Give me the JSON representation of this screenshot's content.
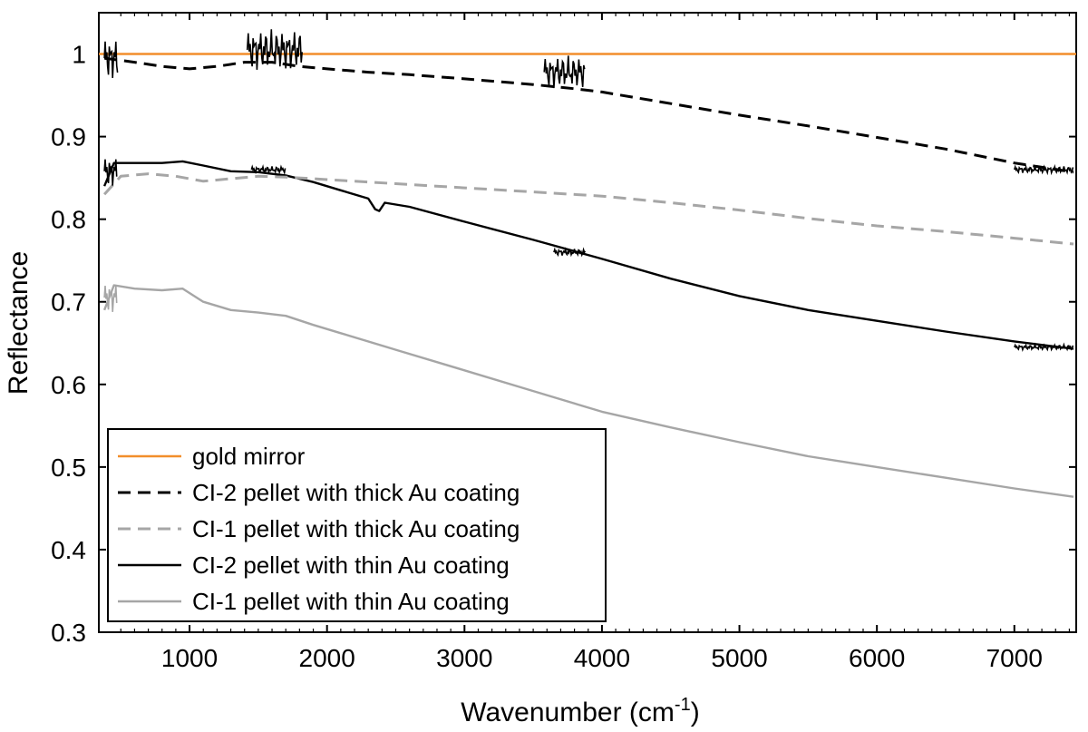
{
  "chart_data": {
    "type": "line",
    "title": "",
    "xlabel_main": "Wavenumber (cm",
    "xlabel_sup": "-1",
    "xlabel_close": ")",
    "ylabel": "Reflectance",
    "xlim": [
      340,
      7450
    ],
    "ylim": [
      0.3,
      1.05
    ],
    "xticks": [
      1000,
      2000,
      3000,
      4000,
      5000,
      6000,
      7000
    ],
    "xtick_labels": [
      "1000",
      "2000",
      "3000",
      "4000",
      "5000",
      "6000",
      "7000"
    ],
    "yticks": [
      0.3,
      0.4,
      0.5,
      0.6,
      0.7,
      0.8,
      0.9,
      1.0
    ],
    "ytick_labels": [
      "0.3",
      "0.4",
      "0.5",
      "0.6",
      "0.7",
      "0.8",
      "0.9",
      "1"
    ],
    "legend_position": "bottom-left",
    "series": [
      {
        "name": "gold mirror",
        "color": "#f28e2b",
        "style": "solid",
        "x": [
          340,
          7450
        ],
        "y": [
          1.0,
          1.0
        ]
      },
      {
        "name": "CI-2 pellet with thick Au coating",
        "color": "#000000",
        "style": "dashed",
        "x": [
          380,
          600,
          800,
          1000,
          1200,
          1400,
          1600,
          1800,
          2000,
          2300,
          2600,
          3000,
          3500,
          3800,
          4000,
          4500,
          5000,
          5500,
          6000,
          6500,
          7000,
          7430
        ],
        "y": [
          0.995,
          0.99,
          0.985,
          0.982,
          0.985,
          0.99,
          0.99,
          0.985,
          0.982,
          0.978,
          0.975,
          0.97,
          0.963,
          0.958,
          0.954,
          0.94,
          0.926,
          0.913,
          0.899,
          0.885,
          0.868,
          0.857
        ]
      },
      {
        "name": "CI-1 pellet with thick Au coating",
        "color": "#a6a6a6",
        "style": "dashed",
        "x": [
          380,
          500,
          700,
          900,
          1100,
          1300,
          1500,
          1700,
          2000,
          2500,
          3000,
          3500,
          4000,
          4500,
          5000,
          5500,
          6000,
          6500,
          7000,
          7430
        ],
        "y": [
          0.83,
          0.852,
          0.855,
          0.852,
          0.846,
          0.849,
          0.852,
          0.851,
          0.848,
          0.843,
          0.838,
          0.833,
          0.828,
          0.82,
          0.811,
          0.801,
          0.792,
          0.785,
          0.777,
          0.77
        ]
      },
      {
        "name": "CI-2 pellet with thin Au coating",
        "color": "#000000",
        "style": "solid",
        "x": [
          380,
          450,
          600,
          800,
          950,
          1100,
          1300,
          1500,
          1700,
          1900,
          2100,
          2300,
          2350,
          2380,
          2420,
          2600,
          3000,
          3500,
          4000,
          4500,
          5000,
          5500,
          6000,
          6500,
          7000,
          7430
        ],
        "y": [
          0.84,
          0.868,
          0.868,
          0.868,
          0.87,
          0.865,
          0.858,
          0.857,
          0.853,
          0.845,
          0.835,
          0.825,
          0.812,
          0.81,
          0.82,
          0.815,
          0.797,
          0.775,
          0.752,
          0.728,
          0.707,
          0.69,
          0.677,
          0.664,
          0.652,
          0.643
        ]
      },
      {
        "name": "CI-1 pellet with thin Au coating",
        "color": "#a6a6a6",
        "style": "solid",
        "x": [
          380,
          450,
          600,
          800,
          950,
          1100,
          1300,
          1500,
          1700,
          1900,
          2100,
          2500,
          3000,
          3500,
          4000,
          4500,
          5000,
          5500,
          6000,
          6500,
          7000,
          7430
        ],
        "y": [
          0.69,
          0.72,
          0.716,
          0.714,
          0.716,
          0.7,
          0.69,
          0.687,
          0.683,
          0.672,
          0.662,
          0.642,
          0.617,
          0.592,
          0.567,
          0.548,
          0.53,
          0.513,
          0.5,
          0.487,
          0.474,
          0.464
        ]
      }
    ]
  }
}
